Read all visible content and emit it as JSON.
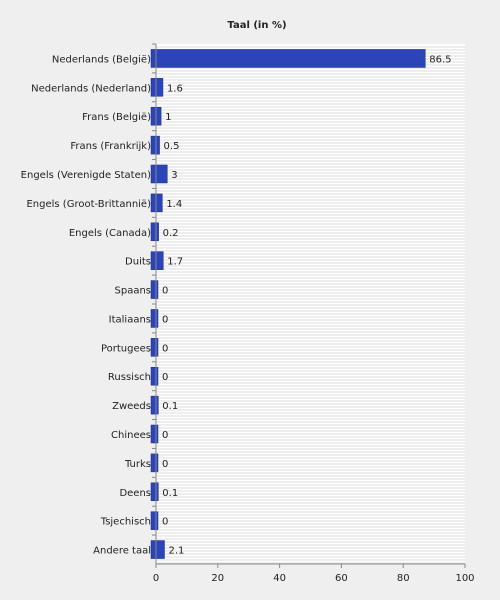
{
  "chart_data": {
    "type": "bar",
    "orientation": "horizontal",
    "title": "Taal (in %)",
    "xlabel": "",
    "ylabel": "",
    "xlim": [
      0,
      100
    ],
    "xticks": [
      0,
      20,
      40,
      60,
      80,
      100
    ],
    "grid": true,
    "legend": "none",
    "bar_color": "#2b44b8",
    "categories": [
      "Nederlands (België)",
      "Nederlands (Nederland)",
      "Frans (België)",
      "Frans (Frankrijk)",
      "Engels (Verenigde Staten)",
      "Engels (Groot-Brittannië)",
      "Engels (Canada)",
      "Duits",
      "Spaans",
      "Italiaans",
      "Portugees",
      "Russisch",
      "Zweeds",
      "Chinees",
      "Turks",
      "Deens",
      "Tsjechisch",
      "Andere taal"
    ],
    "values": [
      86.5,
      1.6,
      1,
      0.5,
      3,
      1.4,
      0.2,
      1.7,
      0,
      0,
      0,
      0,
      0.1,
      0,
      0,
      0.1,
      0,
      2.1
    ]
  }
}
